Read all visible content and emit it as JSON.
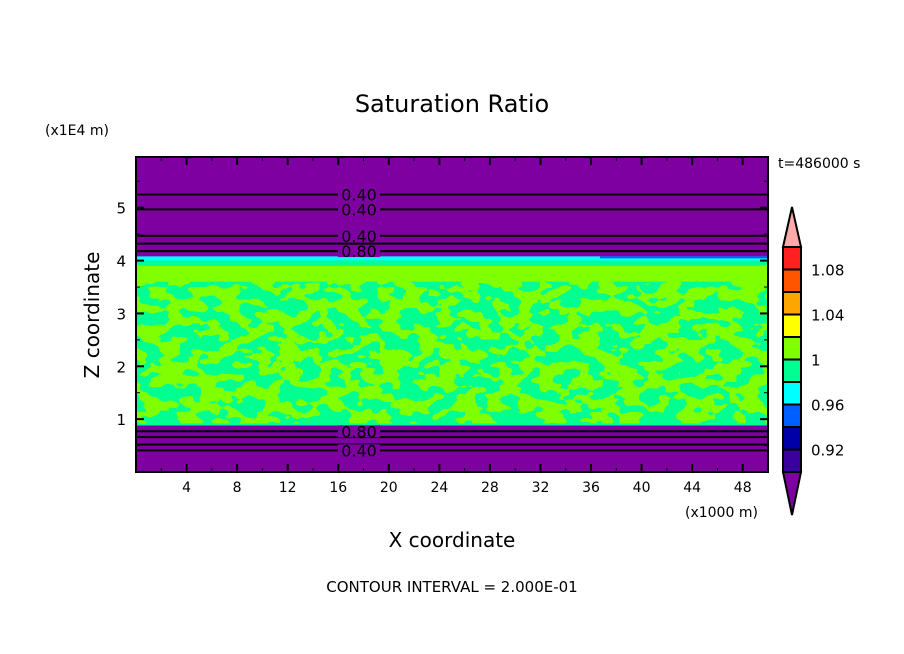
{
  "chart_data": {
    "type": "contour",
    "title": "Saturation Ratio",
    "xlabel": "X coordinate",
    "ylabel": "Z coordinate",
    "x_unit": "(x1000 m)",
    "y_unit": "(x1E4 m)",
    "time_label": "t=486000 s",
    "footer": "CONTOUR INTERVAL = 2.000E-01",
    "xlim": [
      0,
      50
    ],
    "ylim": [
      0,
      5.96
    ],
    "x_ticks": [
      4,
      8,
      12,
      16,
      20,
      24,
      28,
      32,
      36,
      40,
      44,
      48
    ],
    "x_tick_labels": [
      "4",
      "8",
      "12",
      "16",
      "20",
      "24",
      "28",
      "32",
      "36",
      "40",
      "44",
      "48"
    ],
    "y_ticks": [
      1,
      2,
      3,
      4,
      5
    ],
    "y_tick_labels": [
      "1",
      "2",
      "3",
      "4",
      "5"
    ],
    "contour_labels": [
      {
        "text": "0.40",
        "z": 5.25
      },
      {
        "text": "0.40",
        "z": 4.97
      },
      {
        "text": "0.40",
        "z": 4.47
      },
      {
        "text": "0.80",
        "z": 4.18
      },
      {
        "text": "0.80",
        "z": 0.77
      },
      {
        "text": "0.40",
        "z": 0.41
      }
    ],
    "contour_lines_z": [
      5.25,
      4.97,
      4.47,
      4.32,
      4.18,
      0.77,
      0.66,
      0.52,
      0.41
    ],
    "regions": [
      {
        "z": [
          0,
          0.88
        ],
        "level": "< 0.90"
      },
      {
        "z": [
          0.88,
          0.92
        ],
        "level": "0.98-1.00"
      },
      {
        "z": [
          0.92,
          3.6
        ],
        "level": "0.98-1.02 mixed"
      },
      {
        "z": [
          3.6,
          3.9
        ],
        "level": "1.00-1.02"
      },
      {
        "z": [
          3.9,
          4.05
        ],
        "level": "0.98-1.00"
      },
      {
        "z": [
          4.05,
          5.96
        ],
        "level": "< 0.90"
      }
    ],
    "colorbar": {
      "levels": [
        0.9,
        0.92,
        0.94,
        0.96,
        0.98,
        1.0,
        1.02,
        1.04,
        1.06,
        1.08,
        1.1
      ],
      "tick_labels": [
        {
          "text": "0.92",
          "value": 0.92
        },
        {
          "text": "0.96",
          "value": 0.96
        },
        {
          "text": "1",
          "value": 1.0
        },
        {
          "text": "1.04",
          "value": 1.04
        },
        {
          "text": "1.08",
          "value": 1.08
        }
      ],
      "colors": [
        "#3a00a0",
        "#0000a8",
        "#0060ff",
        "#00ffff",
        "#00ff90",
        "#80ff00",
        "#ffff00",
        "#ffa500",
        "#ff5500",
        "#ff2020"
      ],
      "under_color": "#7f00a0",
      "over_color": "#ffaaaa"
    }
  }
}
